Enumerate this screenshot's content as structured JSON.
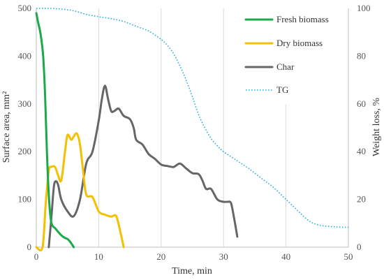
{
  "chart_data": {
    "type": "line",
    "xlabel": "Time, min",
    "ylabel_left": "Surface area, mm²",
    "ylabel_right": "Weight loss, %",
    "xlim": [
      0,
      50
    ],
    "ylim_left": [
      0,
      500
    ],
    "ylim_right": [
      0,
      100
    ],
    "x_ticks": [
      "0",
      "10",
      "20",
      "30",
      "40",
      "50"
    ],
    "y_left_ticks": [
      "0",
      "100",
      "200",
      "300",
      "400",
      "500"
    ],
    "y_right_ticks": [
      "0",
      "20",
      "40",
      "60",
      "80",
      "100"
    ],
    "grid": "vertical",
    "legend_position": "top-right",
    "series": [
      {
        "name": "Fresh biomass",
        "axis": "left",
        "color": "#1aaa4a",
        "style": "solid",
        "x": [
          0,
          0.3,
          0.7,
          1.1,
          1.4,
          1.7,
          2.0,
          2.3,
          2.6,
          3.0,
          3.5,
          4.0,
          4.5,
          5.0,
          5.5,
          6.0
        ],
        "y": [
          490,
          470,
          445,
          400,
          320,
          200,
          110,
          60,
          45,
          40,
          32,
          25,
          20,
          17,
          10,
          0
        ]
      },
      {
        "name": "Dry biomass",
        "axis": "left",
        "color": "#f5c000",
        "style": "solid",
        "x": [
          0,
          1.0,
          1.5,
          2.0,
          2.4,
          3.0,
          3.5,
          4.0,
          4.6,
          5.0,
          5.6,
          6.0,
          6.5,
          7.0,
          7.5,
          8.0,
          9.0,
          10.0,
          11.0,
          12.0,
          12.8,
          13.5,
          14.0
        ],
        "y": [
          0,
          0,
          90,
          160,
          168,
          168,
          150,
          140,
          200,
          235,
          225,
          232,
          238,
          215,
          160,
          110,
          105,
          75,
          68,
          64,
          65,
          30,
          0
        ],
        "thin_lead": [
          [
            0,
            0
          ],
          [
            1.0,
            0
          ]
        ]
      },
      {
        "name": "Char",
        "axis": "left",
        "color": "#666666",
        "style": "solid",
        "x": [
          2.0,
          2.4,
          2.8,
          3.1,
          3.5,
          4.0,
          5.0,
          6.0,
          7.0,
          8.0,
          9.0,
          10.0,
          10.5,
          11.0,
          11.5,
          12.0,
          12.5,
          13.2,
          14.0,
          15.0,
          15.6,
          16.0,
          17.0,
          18.0,
          19.0,
          20.0,
          21.0,
          22.0,
          23.0,
          24.0,
          25.0,
          26.0,
          26.6,
          27.2,
          28.0,
          29.0,
          30.0,
          30.7,
          31.2,
          31.7,
          32.2
        ],
        "y": [
          0,
          60,
          125,
          138,
          130,
          100,
          75,
          65,
          100,
          175,
          200,
          265,
          310,
          338,
          310,
          285,
          285,
          290,
          275,
          268,
          250,
          225,
          215,
          195,
          185,
          173,
          170,
          168,
          175,
          165,
          155,
          153,
          140,
          122,
          122,
          100,
          95,
          95,
          92,
          60,
          22
        ]
      },
      {
        "name": "TG",
        "axis": "right",
        "color": "#29aee0",
        "style": "dotted",
        "x": [
          0,
          2,
          4,
          6,
          8,
          10,
          12,
          14,
          16,
          18,
          20,
          21,
          22,
          23,
          24,
          25,
          26,
          27,
          28,
          29,
          30,
          32,
          34,
          36,
          38,
          40,
          42,
          43,
          44,
          45,
          46,
          48,
          50
        ],
        "y": [
          100,
          100,
          99.7,
          99,
          97.5,
          96.5,
          95.7,
          94.5,
          92.5,
          90.5,
          87,
          84.5,
          81,
          76,
          70,
          63,
          55.5,
          50,
          45.5,
          42.5,
          40,
          36.5,
          33,
          29,
          25,
          20,
          15,
          12.5,
          10.5,
          9.5,
          8.9,
          8.5,
          8.3
        ]
      }
    ]
  }
}
